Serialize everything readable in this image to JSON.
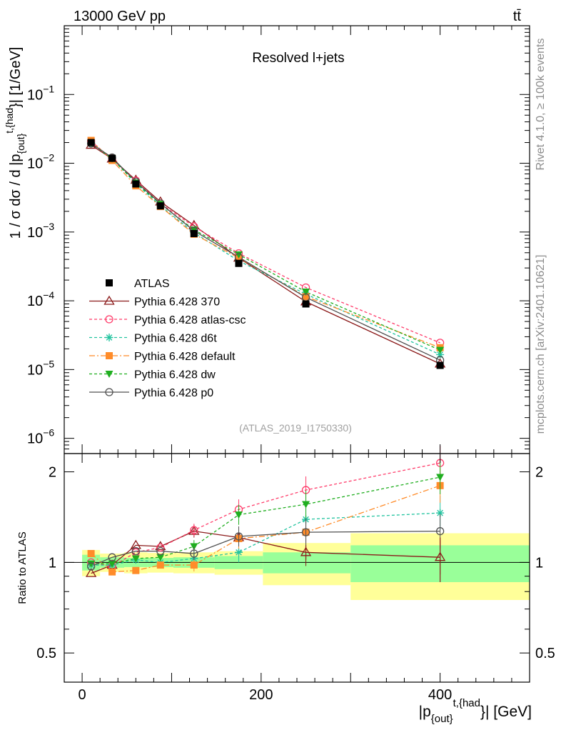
{
  "header": {
    "left_title": "13000 GeV pp",
    "right_title": "tt̄",
    "plot_label": "Resolved l+jets",
    "analysis_id": "(ATLAS_2019_I1750330)",
    "side_label_top": "Rivet 4.1.0, ≥ 100k events",
    "side_label_bottom": "mcplots.cern.ch [arXiv:2401.10621]"
  },
  "main_ylabel": {
    "prefix": "1 / σ dσ / d |p",
    "sub": "{out}",
    "sup": "t,{had",
    "suffix": "}| [1/GeV]"
  },
  "xlabel": {
    "prefix": "|p",
    "sub": "{out}",
    "sup": "t,{had",
    "suffix": "}| [GeV]"
  },
  "ratio_ylabel": "Ratio to ATLAS",
  "y_ticks_main": [
    {
      "mant": "10",
      "exp": "−6",
      "value": 1e-06
    },
    {
      "mant": "10",
      "exp": "−5",
      "value": 1e-05
    },
    {
      "mant": "10",
      "exp": "−4",
      "value": 0.0001
    },
    {
      "mant": "10",
      "exp": "−3",
      "value": 0.001
    },
    {
      "mant": "10",
      "exp": "−2",
      "value": 0.01
    },
    {
      "mant": "10",
      "exp": "−1",
      "value": 0.1
    }
  ],
  "y_ticks_ratio": [
    "0.5",
    "1",
    "2"
  ],
  "x_ticks": [
    "0",
    "200",
    "400"
  ],
  "legend": [
    {
      "label": "ATLAS"
    },
    {
      "label": "Pythia 6.428 370"
    },
    {
      "label": "Pythia 6.428 atlas-csc"
    },
    {
      "label": "Pythia 6.428 d6t"
    },
    {
      "label": "Pythia 6.428 default"
    },
    {
      "label": "Pythia 6.428 dw"
    },
    {
      "label": "Pythia 6.428 p0"
    }
  ],
  "chart_data": {
    "type": "line",
    "x_range": [
      -20,
      500
    ],
    "main_y_range": [
      6e-07,
      1.0
    ],
    "main_y_scale": "log",
    "ratio_y_range": [
      0.4,
      2.3
    ],
    "ratio_y_scale": "log",
    "x": [
      10,
      33.5,
      60,
      87.5,
      125,
      175,
      250,
      400
    ],
    "x_err": [
      [
        0,
        20
      ],
      [
        20,
        47
      ],
      [
        47,
        73
      ],
      [
        73,
        102
      ],
      [
        102,
        148
      ],
      [
        148,
        202
      ],
      [
        202,
        300
      ],
      [
        300,
        500
      ]
    ],
    "band_inner": [
      0.06,
      0.04,
      0.035,
      0.035,
      0.04,
      0.05,
      0.08,
      0.14
    ],
    "band_outer": [
      0.1,
      0.07,
      0.08,
      0.075,
      0.08,
      0.09,
      0.16,
      0.25
    ],
    "series": [
      {
        "name": "ATLAS",
        "color": "#000000",
        "marker": "square",
        "dash": "none",
        "values": [
          0.02,
          0.0118,
          0.005,
          0.0024,
          0.00095,
          0.00035,
          9e-05,
          1.15e-05
        ],
        "ratio": [
          1,
          1,
          1,
          1,
          1,
          1,
          1,
          1
        ]
      },
      {
        "name": "Pythia 6.428 370",
        "color": "#8b1a1a",
        "marker": "triangle-open",
        "dash": "none",
        "values": [
          0.0184,
          0.0116,
          0.0057,
          0.00275,
          0.00125,
          0.00042,
          9.7e-05,
          1.21e-05
        ],
        "ratio": [
          0.92,
          0.98,
          1.14,
          1.13,
          1.27,
          1.21,
          1.08,
          1.04
        ]
      },
      {
        "name": "Pythia 6.428 atlas-csc",
        "color": "#ff3d6b",
        "marker": "circle-open",
        "dash": "4,3",
        "values": [
          0.021,
          0.0114,
          0.0056,
          0.0026,
          0.0012,
          0.00049,
          0.000156,
          2.45e-05
        ],
        "ratio": [
          1.0,
          0.97,
          1.08,
          1.12,
          1.28,
          1.5,
          1.74,
          2.14
        ]
      },
      {
        "name": "Pythia 6.428 d6t",
        "color": "#24c4a0",
        "marker": "star",
        "dash": "4,3",
        "values": [
          0.0196,
          0.0116,
          0.0051,
          0.0024,
          0.00098,
          0.00038,
          0.000125,
          1.65e-05
        ],
        "ratio": [
          0.98,
          0.98,
          1.02,
          1.0,
          1.03,
          1.08,
          1.39,
          1.46
        ]
      },
      {
        "name": "Pythia 6.428 default",
        "color": "#ff8c2a",
        "marker": "square",
        "dash": "8,3,2,3",
        "values": [
          0.0215,
          0.011,
          0.0047,
          0.00235,
          0.00093,
          0.00042,
          0.000115,
          2.08e-05
        ],
        "ratio": [
          1.07,
          0.93,
          0.94,
          0.98,
          0.98,
          1.2,
          1.26,
          1.8
        ]
      },
      {
        "name": "Pythia 6.428 dw",
        "color": "#1fae1f",
        "marker": "triangle-down",
        "dash": "4,3",
        "values": [
          0.0197,
          0.0117,
          0.0052,
          0.00255,
          0.00108,
          0.00047,
          0.000135,
          1.92e-05
        ],
        "ratio": [
          0.99,
          0.99,
          1.03,
          1.04,
          1.13,
          1.44,
          1.56,
          1.92
        ]
      },
      {
        "name": "Pythia 6.428 p0",
        "color": "#505050",
        "marker": "circle-open",
        "dash": "none",
        "values": [
          0.0194,
          0.0121,
          0.0054,
          0.0026,
          0.00104,
          0.00043,
          0.000112,
          1.37e-05
        ],
        "ratio": [
          0.97,
          1.04,
          1.09,
          1.09,
          1.07,
          1.22,
          1.26,
          1.27
        ]
      }
    ]
  }
}
